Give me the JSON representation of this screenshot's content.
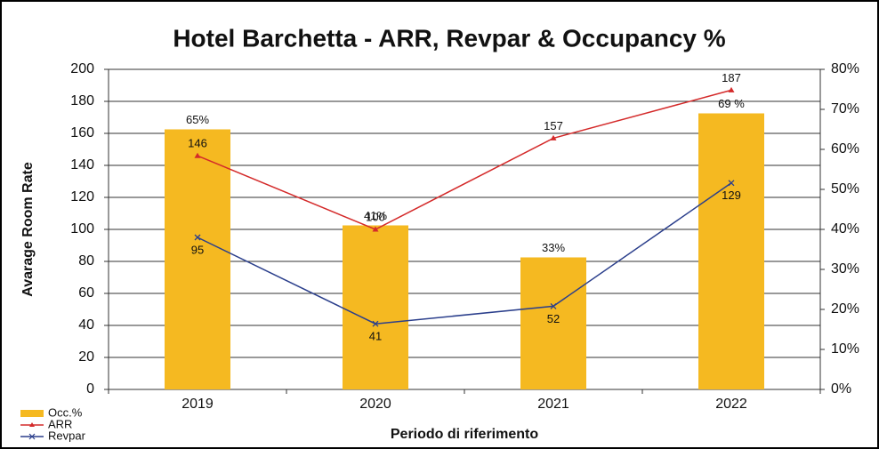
{
  "chart_data": {
    "type": "bar",
    "title": "Hotel Barchetta - ARR, Revpar & Occupancy %",
    "x_label": "Periodo di riferimento",
    "y_label": "Avarage Room Rate",
    "categories": [
      "2019",
      "2020",
      "2021",
      "2022"
    ],
    "series": [
      {
        "name": "Occ.%",
        "type": "bar",
        "axis": "y2",
        "color": "#f5b921",
        "values": [
          65,
          41,
          33,
          69
        ],
        "value_labels": [
          "65%",
          "41%",
          "33%",
          "69 %"
        ]
      },
      {
        "name": "ARR",
        "type": "line",
        "color": "#d42a2a",
        "marker": "triangle",
        "values": [
          146,
          100,
          157,
          187
        ]
      },
      {
        "name": "Revpar",
        "type": "line",
        "color": "#2b3f8c",
        "marker": "x",
        "values": [
          95,
          41,
          52,
          129
        ]
      }
    ],
    "ylim": [
      0,
      200
    ],
    "yticks": [
      0,
      20,
      40,
      60,
      80,
      100,
      120,
      140,
      160,
      180,
      200
    ],
    "y2lim": [
      0,
      80
    ],
    "y2ticks": [
      {
        "value": 0,
        "label": "0%"
      },
      {
        "value": 10,
        "label": "10%"
      },
      {
        "value": 20,
        "label": "20%"
      },
      {
        "value": 30,
        "label": "30%"
      },
      {
        "value": 40,
        "label": "40%"
      },
      {
        "value": 50,
        "label": "50%"
      },
      {
        "value": 60,
        "label": "60%"
      },
      {
        "value": 70,
        "label": "70%"
      },
      {
        "value": 80,
        "label": "80%"
      }
    ],
    "grid": true,
    "legend": "bottom-left"
  }
}
